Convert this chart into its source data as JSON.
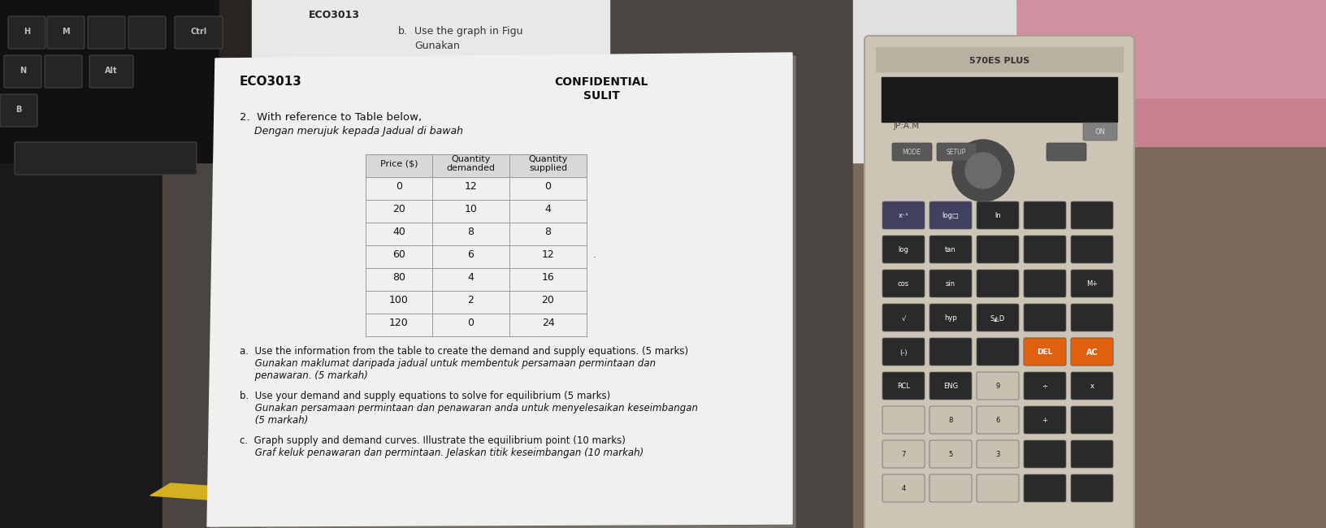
{
  "bg_left_color": "#1a1a1a",
  "bg_mid_color": "#3a3a3a",
  "bg_right_color": "#8a7a6a",
  "paper_color": "#f2f2f0",
  "paper_shadow": "#999999",
  "header_bold": "ECO3013",
  "header_confidential": "CONFIDENTIAL",
  "header_sulit": "SULIT",
  "question_intro": "2.  With reference to Table below,",
  "question_intro_ms": "Dengan merujuk kepada Jadual di bawah",
  "table_headers": [
    "Price ($)",
    "Quantity\ndemanded",
    "Quantity\nsupplied"
  ],
  "table_data": [
    [
      0,
      12,
      0
    ],
    [
      20,
      10,
      4
    ],
    [
      40,
      8,
      8
    ],
    [
      60,
      6,
      12
    ],
    [
      80,
      4,
      16
    ],
    [
      100,
      2,
      20
    ],
    [
      120,
      0,
      24
    ]
  ],
  "part_a_en": "a.  Use the information from the table to create the demand and supply equations. (5 marks)",
  "part_a_ms1": "     Gunakan maklumat daripada jadual untuk membentuk persamaan permintaan dan",
  "part_a_ms2": "     penawaran. (5 markah)",
  "part_b_en": "b.  Use your demand and supply equations to solve for equilibrium (5 marks)",
  "part_b_ms1": "     Gunakan persamaan permintaan dan penawaran anda untuk menyelesaikan keseimbangan",
  "part_b_ms2": "     (5 markah)",
  "part_c_en": "c.  Graph supply and demand curves. Illustrate the equilibrium point (10 marks)",
  "part_c_ms1": "     Graf keluk penawaran dan permintaan. Jelaskan titik keseimbangan (10 markah)",
  "top_eco": "ECO3013",
  "top_b": "b.",
  "top_use": "Use the graph in Figu",
  "top_gunakan": "Gunakan",
  "calc_brand": "570ES PLUS",
  "calc_label": "JP:A.M",
  "key_labels": [
    "H",
    "M",
    "",
    "Ctrl",
    "N",
    "",
    "Alt",
    "B"
  ],
  "keyboard_dark": "#1c1c1c",
  "keyboard_key": "#2e2e2e",
  "keyboard_key_light": "#3c3c3c",
  "calc_body": "#d8d0c0",
  "calc_display": "#222222",
  "calc_btn_dark": "#2a2a2a",
  "calc_btn_light": "#c8c0b0",
  "calc_btn_orange": "#e07020",
  "calc_btn_blue": "#4060c0",
  "desk_color": "#5a5040",
  "paper_top_color": "#eeeeee"
}
